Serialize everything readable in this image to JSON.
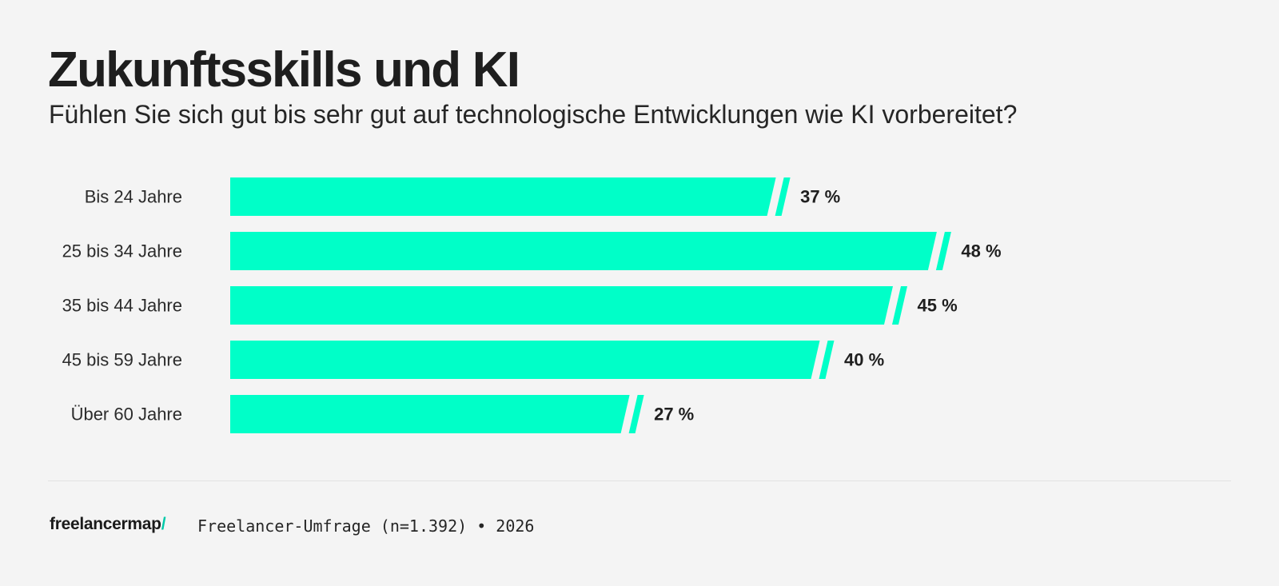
{
  "header": {
    "title": "Zukunftsskills und KI",
    "subtitle": "Fühlen Sie sich gut bis sehr gut auf technologische Entwicklungen wie KI vorbereitet?"
  },
  "chart_data": {
    "type": "bar",
    "orientation": "horizontal",
    "categories": [
      "Bis 24 Jahre",
      "25 bis 34 Jahre",
      "35 bis 44 Jahre",
      "45 bis 59 Jahre",
      "Über 60 Jahre"
    ],
    "values": [
      37,
      48,
      45,
      40,
      27
    ],
    "value_labels": [
      "37 %",
      "48 %",
      "45 %",
      "40 %",
      "27 %"
    ],
    "title": "Zukunftsskills und KI",
    "subtitle": "Fühlen Sie sich gut bis sehr gut auf technologische Entwicklungen wie KI vorbereitet?",
    "xlim": [
      0,
      50
    ],
    "grid": false,
    "legend": "none",
    "colors": {
      "bar": "#00ffc8",
      "label": "#2b2b2b",
      "value": "#1f1f1f"
    }
  },
  "footer": {
    "logo_text": "freelancermap",
    "logo_slash": "/",
    "source": "Freelancer-Umfrage (n=1.392) • 2026"
  },
  "colors": {
    "background": "#f4f4f4",
    "accent": "#00ffc8",
    "text": "#1f1f1f"
  }
}
